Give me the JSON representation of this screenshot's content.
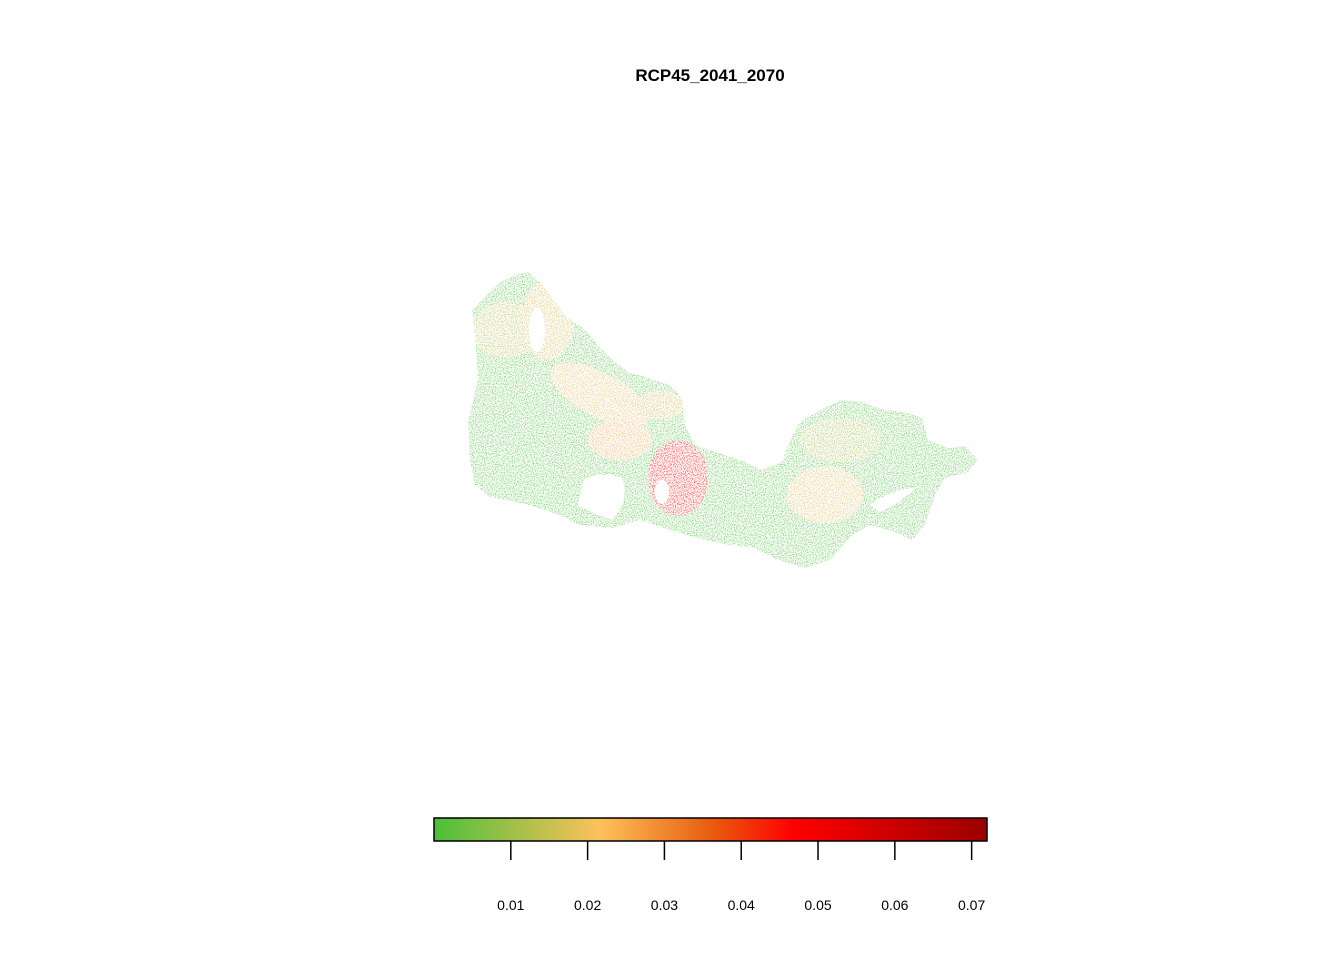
{
  "title": "RCP45_2041_2070",
  "colors": {
    "low": "#4cbf3a",
    "mid_low": "#b5bd45",
    "mid": "#fdc15a",
    "mid_high": "#e85d10",
    "high": "#ff0000",
    "max": "#9b0000"
  },
  "legend": {
    "min": 0.0,
    "max": 0.072,
    "ticks": [
      {
        "value": 0.01,
        "label": "0.01"
      },
      {
        "value": 0.02,
        "label": "0.02"
      },
      {
        "value": 0.03,
        "label": "0.03"
      },
      {
        "value": 0.04,
        "label": "0.04"
      },
      {
        "value": 0.05,
        "label": "0.05"
      },
      {
        "value": 0.06,
        "label": "0.06"
      },
      {
        "value": 0.07,
        "label": "0.07"
      }
    ]
  }
}
